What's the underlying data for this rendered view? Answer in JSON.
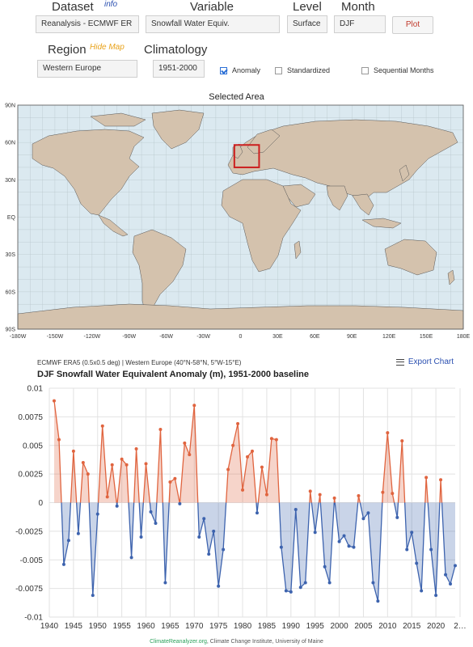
{
  "controls": {
    "dataset_label": "Dataset",
    "dataset_info": "info",
    "dataset_value": "Reanalysis - ECMWF ER",
    "variable_label": "Variable",
    "variable_value": "Snowfall Water Equiv.",
    "level_label": "Level",
    "level_value": "Surface",
    "month_label": "Month",
    "month_value": "DJF",
    "plot_label": "Plot",
    "region_label": "Region",
    "hide_map": "Hide Map",
    "region_value": "Western Europe",
    "climatology_label": "Climatology",
    "climatology_value": "1951-2000",
    "anomaly_label": "Anomaly",
    "anomaly_checked": true,
    "standardized_label": "Standardized",
    "standardized_checked": false,
    "sequential_label": "Sequential Months",
    "sequential_checked": false
  },
  "map": {
    "title": "Selected Area",
    "lon_ticks": [
      "-180W",
      "-150W",
      "-120W",
      "-90W",
      "-60W",
      "-30W",
      "0",
      "30E",
      "60E",
      "90E",
      "120E",
      "150E",
      "180E"
    ],
    "lat_ticks": [
      "90N",
      "60N",
      "30N",
      "EQ",
      "30S",
      "60S",
      "90S"
    ],
    "ocean_color": "#dbe9f0",
    "land_color": "#d4c2ad",
    "selection_color": "#cc1f1f",
    "selection": {
      "lon_min": -5,
      "lon_max": 15,
      "lat_min": 40,
      "lat_max": 58
    }
  },
  "chart_meta": {
    "subtitle": "ECMWF ERA5 (0.5x0.5 deg) | Western Europe (40°N-58°N, 5°W-15°E)",
    "export_label": "Export Chart"
  },
  "chart_data": {
    "type": "area",
    "title": "DJF Snowfall Water Equivalent Anomaly (m), 1951-2000 baseline",
    "xlabel": "",
    "ylabel": "",
    "xlim": [
      1940,
      2024
    ],
    "ylim": [
      -0.01,
      0.01
    ],
    "y_ticks": [
      "0.01",
      "0.0075",
      "0.005",
      "0.0025",
      "0",
      "-0.0025",
      "-0.005",
      "-0.0075",
      "-0.01"
    ],
    "x_ticks": [
      "1940",
      "1945",
      "1950",
      "1955",
      "1960",
      "1965",
      "1970",
      "1975",
      "1980",
      "1985",
      "1990",
      "1995",
      "2000",
      "2005",
      "2010",
      "2015",
      "2020",
      "2…"
    ],
    "positive_color": "#e0643f",
    "negative_color": "#3d63ae",
    "grid": true,
    "x": [
      1941,
      1942,
      1943,
      1944,
      1945,
      1946,
      1947,
      1948,
      1949,
      1950,
      1951,
      1952,
      1953,
      1954,
      1955,
      1956,
      1957,
      1958,
      1959,
      1960,
      1961,
      1962,
      1963,
      1964,
      1965,
      1966,
      1967,
      1968,
      1969,
      1970,
      1971,
      1972,
      1973,
      1974,
      1975,
      1976,
      1977,
      1978,
      1979,
      1980,
      1981,
      1982,
      1983,
      1984,
      1985,
      1986,
      1987,
      1988,
      1989,
      1990,
      1991,
      1992,
      1993,
      1994,
      1995,
      1996,
      1997,
      1998,
      1999,
      2000,
      2001,
      2002,
      2003,
      2004,
      2005,
      2006,
      2007,
      2008,
      2009,
      2010,
      2011,
      2012,
      2013,
      2014,
      2015,
      2016,
      2017,
      2018,
      2019,
      2020,
      2021,
      2022,
      2023,
      2024
    ],
    "values": [
      0.0089,
      0.0055,
      -0.0054,
      -0.0033,
      0.0045,
      -0.0027,
      0.0035,
      0.0025,
      -0.0081,
      -0.001,
      0.0067,
      0.0005,
      0.0033,
      -0.0003,
      0.0038,
      0.0033,
      -0.0048,
      0.0047,
      -0.003,
      0.0034,
      -0.0008,
      -0.0018,
      0.0064,
      -0.007,
      0.0018,
      0.0021,
      -0.0001,
      0.0052,
      0.0042,
      0.0085,
      -0.003,
      -0.0014,
      -0.0045,
      -0.0025,
      -0.0073,
      -0.0041,
      0.0029,
      0.005,
      0.0069,
      0.0011,
      0.004,
      0.0045,
      -0.0009,
      0.0031,
      0.0007,
      0.0056,
      0.0055,
      -0.0039,
      -0.0077,
      -0.0078,
      -0.0006,
      -0.0074,
      -0.007,
      0.001,
      -0.0026,
      0.0007,
      -0.0056,
      -0.007,
      0.0004,
      -0.0034,
      -0.0029,
      -0.0038,
      -0.0039,
      0.0006,
      -0.0014,
      -0.0009,
      -0.007,
      -0.0086,
      0.0009,
      0.0061,
      0.0008,
      -0.0013,
      0.0054,
      -0.0041,
      -0.0026,
      -0.0053,
      -0.0077,
      0.0022,
      -0.0041,
      -0.0081,
      0.002,
      -0.0063,
      -0.0071,
      -0.0055
    ]
  },
  "footer": {
    "link": "ClimateReanalyzer.org",
    "rest": ", Climate Change Institute, University of Maine"
  }
}
